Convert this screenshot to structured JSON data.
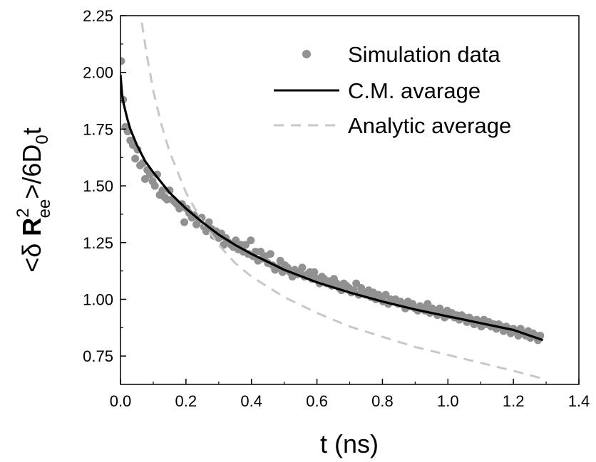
{
  "chart_data": {
    "type": "scatter",
    "xlabel": "t (ns)",
    "ylabel": {
      "lead": "<δ ",
      "bold": "R",
      "sup": "2",
      "sub": "ee",
      "tail": ">/6D",
      "sub2": "0",
      "end": "t"
    },
    "xlim": [
      0.0,
      1.4
    ],
    "ylim": [
      0.625,
      2.25
    ],
    "x_ticks": [
      "0.0",
      "0.2",
      "0.4",
      "0.6",
      "0.8",
      "1.0",
      "1.2",
      "1.4"
    ],
    "y_ticks": [
      "0.75",
      "1.00",
      "1.25",
      "1.50",
      "1.75",
      "2.00",
      "2.25"
    ],
    "legend_position": "top-right",
    "colors": {
      "simulation": "#919191",
      "cm": "#000000",
      "analytic": "#c8c8c8"
    },
    "series": [
      {
        "name": "Simulation data",
        "style": "markers",
        "x": [
          0.002,
          0.008,
          0.015,
          0.022,
          0.03,
          0.038,
          0.045,
          0.052,
          0.06,
          0.068,
          0.075,
          0.082,
          0.09,
          0.098,
          0.105,
          0.112,
          0.12,
          0.128,
          0.135,
          0.142,
          0.15,
          0.158,
          0.165,
          0.172,
          0.18,
          0.188,
          0.195,
          0.202,
          0.21,
          0.218,
          0.225,
          0.232,
          0.24,
          0.248,
          0.255,
          0.262,
          0.27,
          0.278,
          0.285,
          0.292,
          0.3,
          0.308,
          0.315,
          0.322,
          0.33,
          0.338,
          0.345,
          0.352,
          0.36,
          0.368,
          0.375,
          0.382,
          0.39,
          0.398,
          0.405,
          0.412,
          0.42,
          0.428,
          0.435,
          0.442,
          0.45,
          0.458,
          0.465,
          0.472,
          0.48,
          0.488,
          0.495,
          0.502,
          0.51,
          0.518,
          0.525,
          0.532,
          0.54,
          0.548,
          0.555,
          0.562,
          0.57,
          0.578,
          0.585,
          0.592,
          0.6,
          0.608,
          0.615,
          0.622,
          0.63,
          0.638,
          0.645,
          0.652,
          0.66,
          0.668,
          0.675,
          0.682,
          0.69,
          0.698,
          0.705,
          0.712,
          0.72,
          0.728,
          0.735,
          0.742,
          0.75,
          0.758,
          0.765,
          0.772,
          0.78,
          0.788,
          0.795,
          0.802,
          0.81,
          0.818,
          0.825,
          0.832,
          0.84,
          0.848,
          0.855,
          0.862,
          0.87,
          0.878,
          0.885,
          0.892,
          0.9,
          0.908,
          0.915,
          0.922,
          0.93,
          0.938,
          0.945,
          0.952,
          0.96,
          0.968,
          0.975,
          0.982,
          0.99,
          0.998,
          1.005,
          1.012,
          1.02,
          1.028,
          1.035,
          1.042,
          1.05,
          1.058,
          1.065,
          1.072,
          1.08,
          1.088,
          1.095,
          1.102,
          1.11,
          1.118,
          1.125,
          1.132,
          1.14,
          1.148,
          1.155,
          1.162,
          1.17,
          1.178,
          1.185,
          1.192,
          1.2,
          1.208,
          1.215,
          1.222,
          1.23,
          1.238,
          1.245,
          1.252,
          1.26,
          1.268,
          1.275,
          1.282
        ],
        "y": [
          2.05,
          1.88,
          1.76,
          1.74,
          1.7,
          1.68,
          1.62,
          1.66,
          1.59,
          1.6,
          1.53,
          1.57,
          1.55,
          1.52,
          1.5,
          1.55,
          1.46,
          1.48,
          1.45,
          1.44,
          1.48,
          1.44,
          1.43,
          1.42,
          1.4,
          1.42,
          1.34,
          1.4,
          1.38,
          1.36,
          1.37,
          1.33,
          1.35,
          1.36,
          1.32,
          1.3,
          1.34,
          1.31,
          1.28,
          1.3,
          1.27,
          1.29,
          1.24,
          1.27,
          1.25,
          1.24,
          1.23,
          1.26,
          1.22,
          1.24,
          1.21,
          1.24,
          1.2,
          1.26,
          1.19,
          1.21,
          1.17,
          1.21,
          1.18,
          1.19,
          1.16,
          1.2,
          1.15,
          1.13,
          1.14,
          1.17,
          1.12,
          1.15,
          1.14,
          1.12,
          1.1,
          1.13,
          1.11,
          1.12,
          1.14,
          1.1,
          1.11,
          1.12,
          1.09,
          1.12,
          1.09,
          1.07,
          1.1,
          1.09,
          1.07,
          1.08,
          1.06,
          1.09,
          1.07,
          1.05,
          1.04,
          1.07,
          1.06,
          1.05,
          1.03,
          1.04,
          1.07,
          1.02,
          1.05,
          1.03,
          1.02,
          1.04,
          1.01,
          1.03,
          1.0,
          1.02,
          1.01,
          0.99,
          1.02,
          0.98,
          1.0,
          0.99,
          1.0,
          0.98,
          0.99,
          0.98,
          0.96,
          0.99,
          0.97,
          0.98,
          0.96,
          0.95,
          0.97,
          0.96,
          0.95,
          0.98,
          0.94,
          0.96,
          0.95,
          0.93,
          0.96,
          0.94,
          0.92,
          0.95,
          0.93,
          0.94,
          0.92,
          0.93,
          0.91,
          0.93,
          0.92,
          0.9,
          0.92,
          0.91,
          0.89,
          0.91,
          0.9,
          0.88,
          0.91,
          0.89,
          0.9,
          0.88,
          0.89,
          0.87,
          0.89,
          0.88,
          0.86,
          0.88,
          0.87,
          0.85,
          0.87,
          0.86,
          0.84,
          0.87,
          0.85,
          0.84,
          0.86,
          0.83,
          0.85,
          0.84,
          0.82,
          0.84
        ]
      },
      {
        "name": "C.M. avarage",
        "style": "solid",
        "x": [
          0.0,
          0.005,
          0.01,
          0.02,
          0.03,
          0.05,
          0.075,
          0.1,
          0.15,
          0.2,
          0.25,
          0.3,
          0.35,
          0.4,
          0.5,
          0.6,
          0.7,
          0.8,
          0.9,
          1.0,
          1.1,
          1.2,
          1.29
        ],
        "y": [
          1.99,
          1.9,
          1.86,
          1.8,
          1.75,
          1.68,
          1.61,
          1.56,
          1.47,
          1.4,
          1.34,
          1.285,
          1.24,
          1.2,
          1.13,
          1.075,
          1.03,
          0.99,
          0.955,
          0.925,
          0.895,
          0.865,
          0.82
        ]
      },
      {
        "name": "Analytic average",
        "style": "dashed",
        "x": [
          0.065,
          0.08,
          0.1,
          0.125,
          0.15,
          0.2,
          0.25,
          0.3,
          0.35,
          0.4,
          0.5,
          0.6,
          0.7,
          0.8,
          0.9,
          1.0,
          1.1,
          1.2,
          1.29
        ],
        "y": [
          2.22,
          2.08,
          1.92,
          1.77,
          1.65,
          1.47,
          1.34,
          1.24,
          1.16,
          1.1,
          1.01,
          0.94,
          0.88,
          0.835,
          0.79,
          0.755,
          0.72,
          0.685,
          0.65
        ]
      }
    ]
  }
}
